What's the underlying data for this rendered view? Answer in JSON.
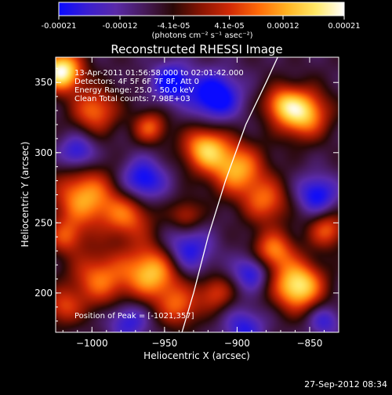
{
  "colorbar": {
    "ticks": [
      "-0.00021",
      "-0.00012",
      "-4.1e-05",
      "4.1e-05",
      "0.00012",
      "0.00021"
    ],
    "tick_values": [
      -0.00021,
      -0.00012,
      -4.1e-05,
      4.1e-05,
      0.00012,
      0.00021
    ],
    "units": "(photons cm⁻² s⁻¹ asec⁻²)",
    "colors": [
      "#0a0aff",
      "#3a1ed0",
      "#5a2aa8",
      "#461a5a",
      "#2a0806",
      "#8a1402",
      "#d22a06",
      "#ff6a08",
      "#ffb422",
      "#ffe866",
      "#ffffff"
    ]
  },
  "chart_data": {
    "type": "heatmap",
    "title": "Reconstructed RHESSI Image",
    "xlabel": "Heliocentric X (arcsec)",
    "ylabel": "Heliocentric Y (arcsec)",
    "xlim": [
      -1025,
      -830
    ],
    "ylim": [
      172,
      368
    ],
    "x_ticks": [
      -1000,
      -950,
      -900,
      -850
    ],
    "y_ticks": [
      200,
      250,
      300,
      350
    ],
    "x_tick_labels": [
      "−1000",
      "−950",
      "−900",
      "−850"
    ],
    "y_tick_labels": [
      "200",
      "250",
      "300",
      "350"
    ],
    "annotations": [
      "13-Apr-2011 01:56:58.000 to 02:01:42.000",
      "Detectors: 4F 5F 6F 7F 8F, Att 0",
      "Energy Range: 25.0 - 50.0 keV",
      "Clean     Total counts: 7.98E+03",
      "Position of Peak = [-1021,357]"
    ],
    "peak": [
      -1021,
      357
    ],
    "blobs": [
      {
        "x": -1021,
        "y": 358,
        "sigma": 10,
        "amp": 1.1
      },
      {
        "x": -998,
        "y": 330,
        "sigma": 11,
        "amp": 0.6
      },
      {
        "x": -960,
        "y": 318,
        "sigma": 8,
        "amp": 0.55
      },
      {
        "x": -1005,
        "y": 268,
        "sigma": 15,
        "amp": 0.75
      },
      {
        "x": -975,
        "y": 255,
        "sigma": 12,
        "amp": 0.55
      },
      {
        "x": -1018,
        "y": 240,
        "sigma": 9,
        "amp": 0.45
      },
      {
        "x": -995,
        "y": 210,
        "sigma": 14,
        "amp": 0.6
      },
      {
        "x": -958,
        "y": 215,
        "sigma": 14,
        "amp": 0.85
      },
      {
        "x": -940,
        "y": 190,
        "sigma": 10,
        "amp": 0.5
      },
      {
        "x": -922,
        "y": 303,
        "sigma": 11,
        "amp": 0.8
      },
      {
        "x": -900,
        "y": 288,
        "sigma": 13,
        "amp": 0.75
      },
      {
        "x": -880,
        "y": 265,
        "sigma": 11,
        "amp": 0.55
      },
      {
        "x": -855,
        "y": 328,
        "sigma": 12,
        "amp": 0.9
      },
      {
        "x": -870,
        "y": 335,
        "sigma": 9,
        "amp": 0.5
      },
      {
        "x": -858,
        "y": 205,
        "sigma": 12,
        "amp": 1.0
      },
      {
        "x": -875,
        "y": 230,
        "sigma": 10,
        "amp": 0.65
      },
      {
        "x": -838,
        "y": 245,
        "sigma": 9,
        "amp": 0.55
      },
      {
        "x": -915,
        "y": 200,
        "sigma": 9,
        "amp": 0.45
      },
      {
        "x": -1020,
        "y": 190,
        "sigma": 9,
        "amp": 0.45
      },
      {
        "x": -935,
        "y": 255,
        "sigma": 8,
        "amp": 0.4
      },
      {
        "x": -945,
        "y": 350,
        "sigma": 10,
        "amp": -0.6
      },
      {
        "x": -915,
        "y": 340,
        "sigma": 12,
        "amp": -0.7
      },
      {
        "x": -965,
        "y": 280,
        "sigma": 11,
        "amp": -0.6
      },
      {
        "x": -935,
        "y": 230,
        "sigma": 12,
        "amp": -0.55
      },
      {
        "x": -975,
        "y": 180,
        "sigma": 10,
        "amp": -0.45
      },
      {
        "x": -845,
        "y": 270,
        "sigma": 10,
        "amp": -0.55
      },
      {
        "x": -890,
        "y": 215,
        "sigma": 9,
        "amp": -0.5
      },
      {
        "x": -840,
        "y": 180,
        "sigma": 8,
        "amp": -0.4
      },
      {
        "x": -1010,
        "y": 300,
        "sigma": 9,
        "amp": -0.5
      },
      {
        "x": -895,
        "y": 175,
        "sigma": 10,
        "amp": -0.45
      }
    ],
    "limb_curve": [
      [
        -938,
        172
      ],
      [
        -930,
        200
      ],
      [
        -920,
        240
      ],
      [
        -908,
        280
      ],
      [
        -894,
        320
      ],
      [
        -880,
        350
      ],
      [
        -872,
        368
      ]
    ]
  },
  "footer": {
    "timestamp": "27-Sep-2012 08:34"
  }
}
